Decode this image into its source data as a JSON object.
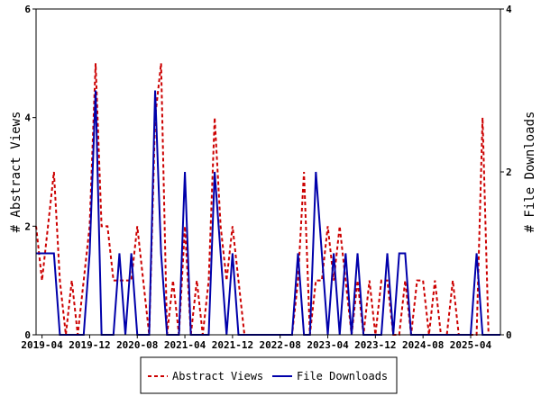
{
  "chart_data": {
    "type": "line",
    "title": "",
    "ylabel": "# Abstract Views",
    "y2label": "# File Downloads",
    "x_start": "2019-03",
    "x_tick_labels": [
      "2019-04",
      "2019-12",
      "2020-08",
      "2021-04",
      "2021-12",
      "2022-08",
      "2023-04",
      "2023-12",
      "2024-08",
      "2025-04"
    ],
    "ylim": [
      0,
      6
    ],
    "y_ticks": [
      0,
      2,
      4,
      6
    ],
    "y2lim": [
      0,
      4
    ],
    "y2_ticks": [
      0,
      2,
      4
    ],
    "grid": false,
    "legend_placement": "bottom-center",
    "series": [
      {
        "name": "Abstract Views",
        "color": "#cc0000",
        "style": "dashed",
        "axis": "left",
        "values": [
          2,
          1,
          2,
          3,
          1,
          0,
          1,
          0,
          1,
          2,
          5,
          2,
          2,
          1,
          1,
          1,
          1,
          2,
          1,
          0,
          4,
          5,
          0,
          1,
          0,
          2,
          0,
          1,
          0,
          1,
          4,
          2,
          1,
          2,
          1,
          0,
          0,
          0,
          0,
          0,
          0,
          0,
          0,
          0,
          1,
          3,
          0,
          1,
          1,
          2,
          1,
          2,
          1,
          0,
          1,
          0,
          1,
          0,
          1,
          1,
          0,
          0,
          1,
          0,
          1,
          1,
          0,
          1,
          0,
          0,
          1,
          0,
          0,
          0,
          0,
          4,
          0,
          0,
          0
        ]
      },
      {
        "name": "File Downloads",
        "color": "#0000aa",
        "style": "solid",
        "axis": "right",
        "values": [
          1,
          1,
          1,
          1,
          0,
          0,
          0,
          0,
          0,
          1,
          3,
          0,
          0,
          0,
          1,
          0,
          1,
          0,
          0,
          0,
          3,
          1,
          0,
          0,
          0,
          2,
          0,
          0,
          0,
          0,
          2,
          1,
          0,
          1,
          0,
          0,
          0,
          0,
          0,
          0,
          0,
          0,
          0,
          0,
          1,
          0,
          0,
          2,
          1,
          0,
          1,
          0,
          1,
          0,
          1,
          0,
          0,
          0,
          0,
          1,
          0,
          1,
          1,
          0,
          0,
          0,
          0,
          0,
          0,
          0,
          0,
          0,
          0,
          0,
          1,
          0,
          0,
          0,
          0
        ]
      }
    ]
  }
}
